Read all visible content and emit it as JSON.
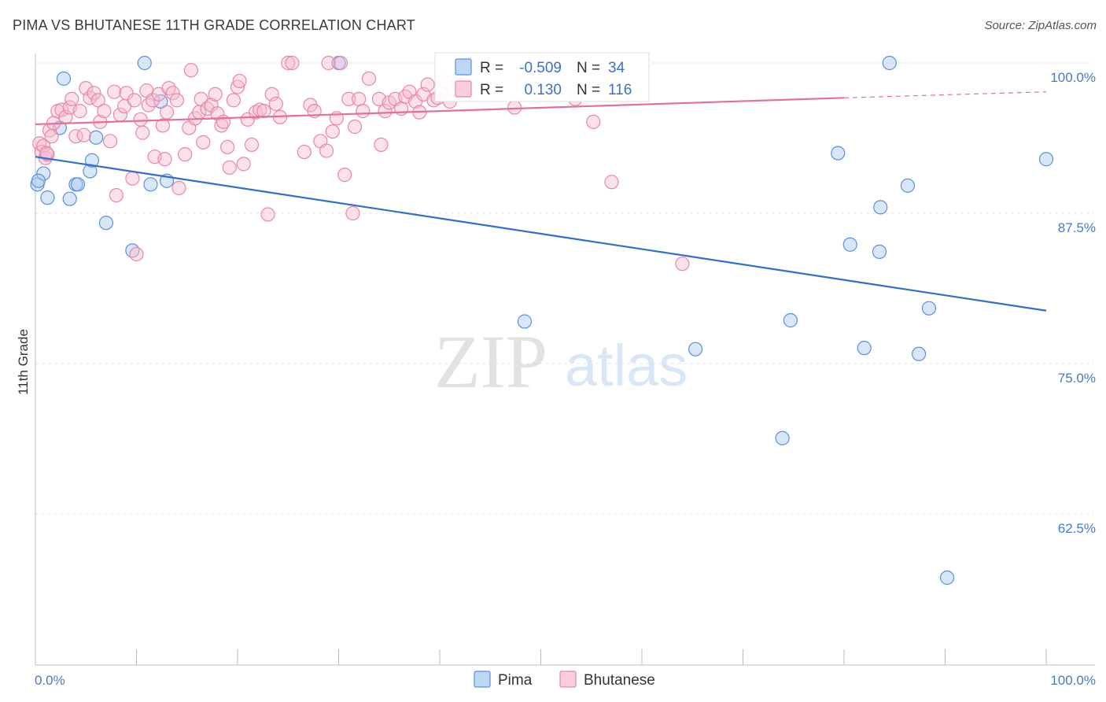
{
  "title": "PIMA VS BHUTANESE 11TH GRADE CORRELATION CHART",
  "source": "Source: ZipAtlas.com",
  "watermark": {
    "zip": "ZIP",
    "atlas": "atlas"
  },
  "colors": {
    "pima": "#5b8fdc",
    "pima_fill": "#aac8f0",
    "pima_line": "#2f6fd0",
    "bhutanese": "#ea86a8",
    "bhutanese_fill": "#f5bcd0",
    "bhutanese_line": "#e46f98",
    "tick_label": "#4a78c9"
  },
  "legend": {
    "pima": {
      "r_label": "R =",
      "r_value": "-0.509",
      "n_label": "N =",
      "n_value": "34"
    },
    "bhutanese": {
      "r_label": "R =",
      "r_value": "0.130",
      "n_label": "N =",
      "n_value": "116"
    }
  },
  "chart_data": {
    "type": "scatter",
    "title": "PIMA VS BHUTANESE 11TH GRADE CORRELATION CHART",
    "xlabel": "",
    "ylabel": "11th Grade",
    "xlim": [
      0,
      100
    ],
    "ylim": [
      50,
      102
    ],
    "x_tick_labels": [
      "0.0%",
      "100.0%"
    ],
    "y_ticks": [
      {
        "value": 100,
        "label": "100.0%"
      },
      {
        "value": 87.5,
        "label": "87.5%"
      },
      {
        "value": 75,
        "label": "75.0%"
      },
      {
        "value": 62.5,
        "label": "62.5%"
      }
    ],
    "grid": true,
    "legend_position": "top-center",
    "series": [
      {
        "name": "Pima",
        "trend": {
          "x": [
            0,
            100
          ],
          "y": [
            92.2,
            79.4
          ]
        },
        "points": [
          [
            0.2,
            89.9
          ],
          [
            0.8,
            90.8
          ],
          [
            1.2,
            88.8
          ],
          [
            2.4,
            94.6
          ],
          [
            2.8,
            98.7
          ],
          [
            3.4,
            88.7
          ],
          [
            4.0,
            89.9
          ],
          [
            4.2,
            89.9
          ],
          [
            5.4,
            91.0
          ],
          [
            5.6,
            91.9
          ],
          [
            6.0,
            93.8
          ],
          [
            7.0,
            86.7
          ],
          [
            9.6,
            84.4
          ],
          [
            10.8,
            100.0
          ],
          [
            11.4,
            89.9
          ],
          [
            12.4,
            96.8
          ],
          [
            13.0,
            90.2
          ],
          [
            30.0,
            100.0
          ],
          [
            48.4,
            78.5
          ],
          [
            65.3,
            76.2
          ],
          [
            73.9,
            68.8
          ],
          [
            74.7,
            78.6
          ],
          [
            79.4,
            92.5
          ],
          [
            80.6,
            84.9
          ],
          [
            82.0,
            76.3
          ],
          [
            83.5,
            84.3
          ],
          [
            83.6,
            88.0
          ],
          [
            86.3,
            89.8
          ],
          [
            84.5,
            100.0
          ],
          [
            87.4,
            75.8
          ],
          [
            88.4,
            79.6
          ],
          [
            90.2,
            57.2
          ],
          [
            100.0,
            92.0
          ],
          [
            0.3,
            90.2
          ]
        ]
      },
      {
        "name": "Bhutanese",
        "trend": {
          "x": [
            0,
            80
          ],
          "y": [
            94.9,
            97.1
          ],
          "dashed_x": [
            80,
            100
          ],
          "dashed_y": [
            97.1,
            97.6
          ]
        },
        "points": [
          [
            0.4,
            93.3
          ],
          [
            0.6,
            92.6
          ],
          [
            0.8,
            93.1
          ],
          [
            1.0,
            92.1
          ],
          [
            1.2,
            92.4
          ],
          [
            1.4,
            94.4
          ],
          [
            1.6,
            93.9
          ],
          [
            1.8,
            95.0
          ],
          [
            2.2,
            96.0
          ],
          [
            2.6,
            96.1
          ],
          [
            3.0,
            95.5
          ],
          [
            3.4,
            96.3
          ],
          [
            3.6,
            97.0
          ],
          [
            4.0,
            93.9
          ],
          [
            4.4,
            96.0
          ],
          [
            4.8,
            94.0
          ],
          [
            5.0,
            97.9
          ],
          [
            5.4,
            97.1
          ],
          [
            5.8,
            97.5
          ],
          [
            6.2,
            96.9
          ],
          [
            6.4,
            95.1
          ],
          [
            6.8,
            96.0
          ],
          [
            7.4,
            93.5
          ],
          [
            7.8,
            97.6
          ],
          [
            8.0,
            89.0
          ],
          [
            8.4,
            95.7
          ],
          [
            8.8,
            96.4
          ],
          [
            9.0,
            97.5
          ],
          [
            9.6,
            90.4
          ],
          [
            9.8,
            96.9
          ],
          [
            10.0,
            84.1
          ],
          [
            10.4,
            95.3
          ],
          [
            10.6,
            94.2
          ],
          [
            11.0,
            97.7
          ],
          [
            11.2,
            96.5
          ],
          [
            11.6,
            96.9
          ],
          [
            11.8,
            92.2
          ],
          [
            12.2,
            97.4
          ],
          [
            12.6,
            94.8
          ],
          [
            12.8,
            92.0
          ],
          [
            13.0,
            95.9
          ],
          [
            13.2,
            97.9
          ],
          [
            13.6,
            97.5
          ],
          [
            14.0,
            96.9
          ],
          [
            14.2,
            89.6
          ],
          [
            14.8,
            92.4
          ],
          [
            15.2,
            94.6
          ],
          [
            15.4,
            99.4
          ],
          [
            15.8,
            95.4
          ],
          [
            16.2,
            95.9
          ],
          [
            16.4,
            97.0
          ],
          [
            16.6,
            93.4
          ],
          [
            17.0,
            96.2
          ],
          [
            17.4,
            96.5
          ],
          [
            17.8,
            97.4
          ],
          [
            18.0,
            95.8
          ],
          [
            18.4,
            94.8
          ],
          [
            18.6,
            95.1
          ],
          [
            19.0,
            93.0
          ],
          [
            19.2,
            91.3
          ],
          [
            19.6,
            96.9
          ],
          [
            20.0,
            98.0
          ],
          [
            20.2,
            98.5
          ],
          [
            20.6,
            91.6
          ],
          [
            21.0,
            95.3
          ],
          [
            21.4,
            93.2
          ],
          [
            21.8,
            95.9
          ],
          [
            22.2,
            96.1
          ],
          [
            22.6,
            96.0
          ],
          [
            23.0,
            87.4
          ],
          [
            23.4,
            97.4
          ],
          [
            23.8,
            96.6
          ],
          [
            24.2,
            95.5
          ],
          [
            25.0,
            100.0
          ],
          [
            25.4,
            100.0
          ],
          [
            26.6,
            92.6
          ],
          [
            27.2,
            96.5
          ],
          [
            27.6,
            96.0
          ],
          [
            28.2,
            93.5
          ],
          [
            28.8,
            92.7
          ],
          [
            29.0,
            100.0
          ],
          [
            29.4,
            94.3
          ],
          [
            29.8,
            95.4
          ],
          [
            30.2,
            100.0
          ],
          [
            30.6,
            90.7
          ],
          [
            31.0,
            97.0
          ],
          [
            31.4,
            87.5
          ],
          [
            31.6,
            94.7
          ],
          [
            32.0,
            97.0
          ],
          [
            32.4,
            96.0
          ],
          [
            33.0,
            98.7
          ],
          [
            34.0,
            97.0
          ],
          [
            34.2,
            93.2
          ],
          [
            34.6,
            96.0
          ],
          [
            35.0,
            96.7
          ],
          [
            35.6,
            97.0
          ],
          [
            36.2,
            96.2
          ],
          [
            36.6,
            97.2
          ],
          [
            37.0,
            97.6
          ],
          [
            37.6,
            96.8
          ],
          [
            38.0,
            95.9
          ],
          [
            38.4,
            97.4
          ],
          [
            38.8,
            98.2
          ],
          [
            39.4,
            96.9
          ],
          [
            39.8,
            97.1
          ],
          [
            40.2,
            97.5
          ],
          [
            40.6,
            98.4
          ],
          [
            41.0,
            96.8
          ],
          [
            42.0,
            98.2
          ],
          [
            43.0,
            99.9
          ],
          [
            47.4,
            96.3
          ],
          [
            53.4,
            97.0
          ],
          [
            55.2,
            95.1
          ],
          [
            57.0,
            90.1
          ],
          [
            64.0,
            83.3
          ],
          [
            1.1,
            92.5
          ]
        ]
      }
    ]
  },
  "bottom_legend": [
    {
      "name": "Pima"
    },
    {
      "name": "Bhutanese"
    }
  ]
}
